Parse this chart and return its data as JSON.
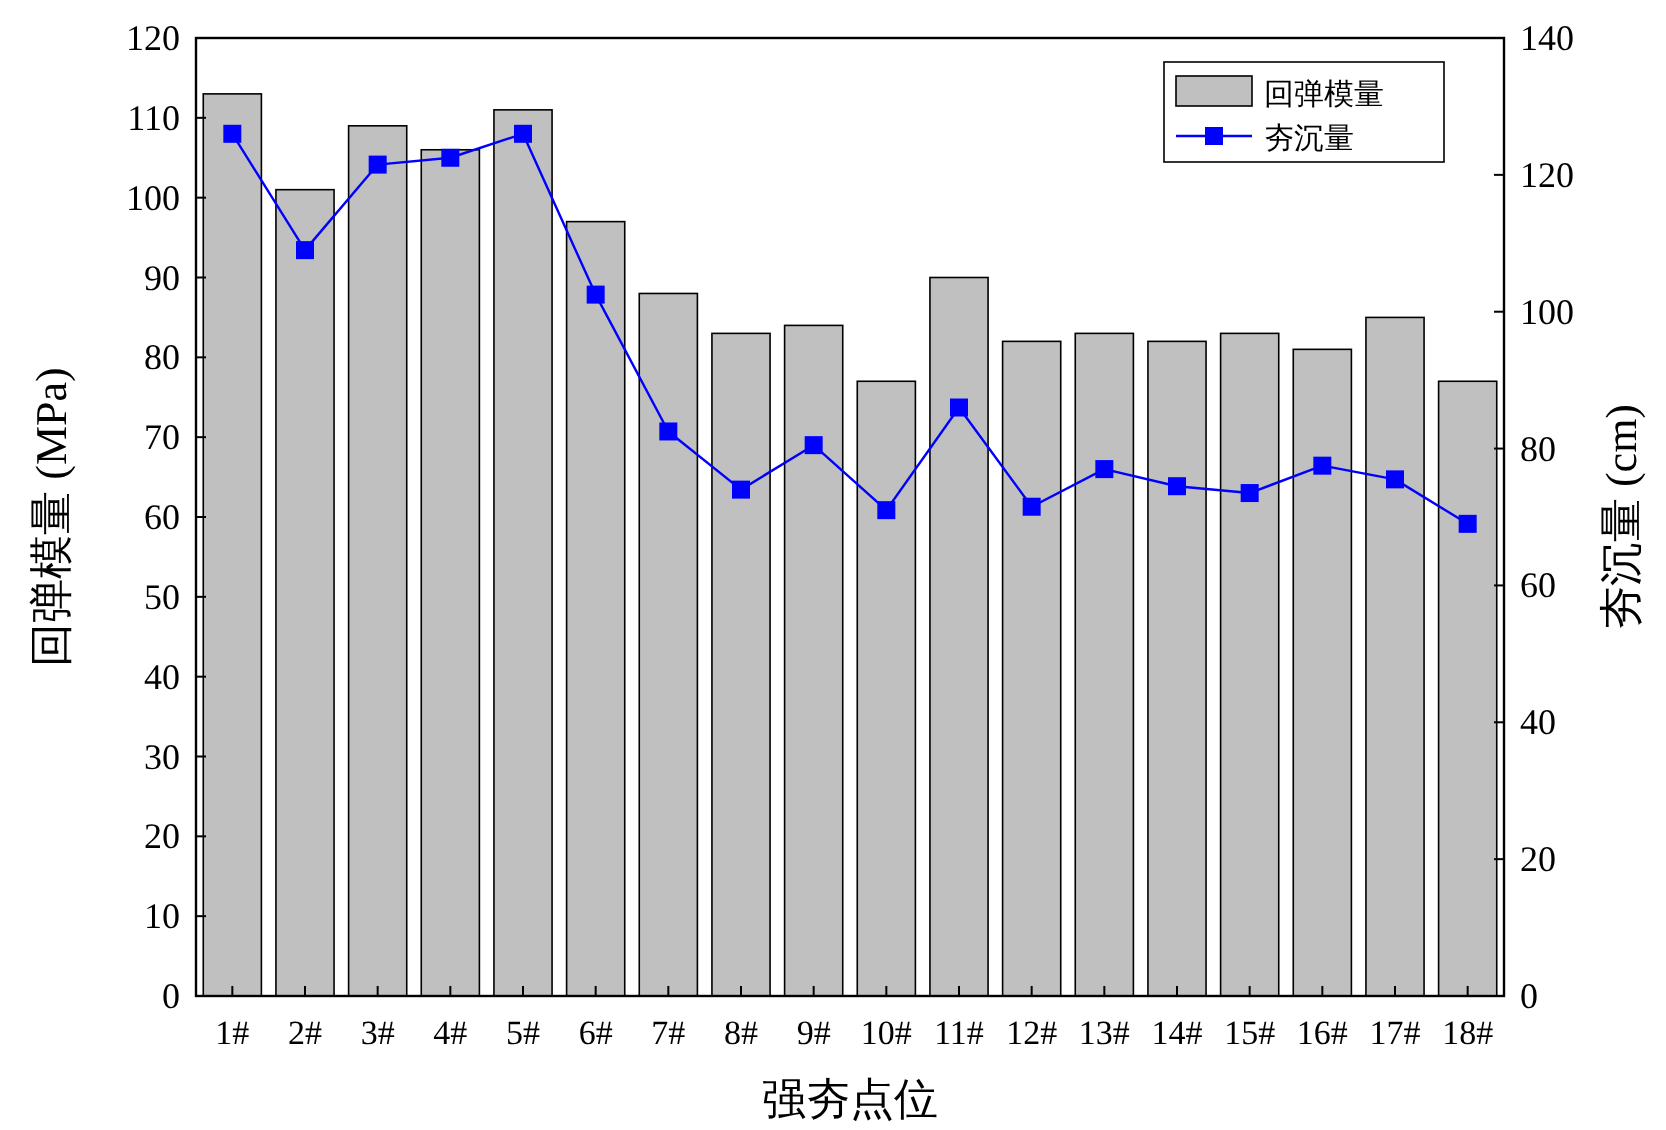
{
  "chart_data": {
    "type": "bar",
    "xlabel": "强夯点位",
    "ylabel": "回弹模量 (MPa)",
    "y2label": "夯沉量 (cm)",
    "categories": [
      "1#",
      "2#",
      "3#",
      "4#",
      "5#",
      "6#",
      "7#",
      "8#",
      "9#",
      "10#",
      "11#",
      "12#",
      "13#",
      "14#",
      "15#",
      "16#",
      "17#",
      "18#"
    ],
    "series": [
      {
        "name": "回弹模量",
        "color": "#c0c0c0",
        "values": [
          113,
          101,
          109,
          106,
          111,
          97,
          88,
          83,
          84,
          77,
          90,
          82,
          83,
          82,
          83,
          81,
          85,
          77
        ]
      },
      {
        "name": "夯沉量",
        "type": "line",
        "axis": "y2",
        "color": "#0000ff",
        "marker": "square",
        "line_style": "solid",
        "values": [
          126,
          109,
          121.5,
          122.5,
          126,
          102.5,
          82.5,
          74,
          80.5,
          71,
          86,
          71.5,
          77,
          74.5,
          73.5,
          77.5,
          75.5,
          69
        ]
      }
    ],
    "ylim": [
      0,
      120
    ],
    "yticks": [
      0,
      10,
      20,
      30,
      40,
      50,
      60,
      70,
      80,
      90,
      100,
      110,
      120
    ],
    "y2lim": [
      0,
      140
    ],
    "y2ticks": [
      0,
      20,
      40,
      60,
      80,
      100,
      120,
      140
    ],
    "grid": false,
    "legend": "top right"
  }
}
